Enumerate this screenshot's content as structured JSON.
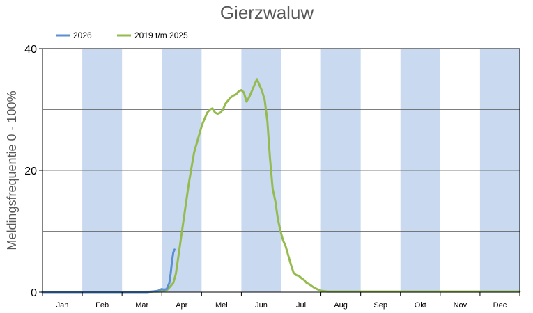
{
  "chart_data": {
    "type": "line",
    "title": "Gierzwaluw",
    "ylabel": "Meldingsfrequentie 0 - 100%",
    "xlabel": "",
    "ylim": [
      0,
      40
    ],
    "yticks": [
      0,
      20,
      40
    ],
    "ygrid_minor": [
      10,
      30
    ],
    "months": [
      "Jan",
      "Feb",
      "Mar",
      "Apr",
      "Mei",
      "Jun",
      "Jul",
      "Aug",
      "Sep",
      "Okt",
      "Nov",
      "Dec"
    ],
    "shaded_months": [
      "Feb",
      "Apr",
      "Jun",
      "Aug",
      "Okt",
      "Dec"
    ],
    "legend_position": "top-left",
    "colors": {
      "shade": "#c9d9ef",
      "series_2026": "#5b8fd1",
      "series_2019_2025": "#95bb4f"
    },
    "series": [
      {
        "name": "2026",
        "color": "#5b8fd1",
        "x": [
          0,
          10,
          30,
          60,
          80,
          88,
          91,
          93,
          95,
          97,
          98,
          99,
          100,
          101
        ],
        "y": [
          0,
          0,
          0,
          0,
          0,
          0.2,
          0.5,
          0.4,
          0.5,
          1.5,
          3,
          5,
          6.5,
          7
        ]
      },
      {
        "name": "2019 t/m 2025",
        "color": "#95bb4f",
        "x": [
          0,
          60,
          90,
          95,
          98,
          100,
          102,
          104,
          106,
          108,
          110,
          112,
          114,
          116,
          118,
          120,
          122,
          124,
          126,
          128,
          130,
          132,
          134,
          136,
          138,
          140,
          142,
          144,
          146,
          148,
          150,
          152,
          154,
          156,
          158,
          160,
          162,
          164,
          166,
          168,
          170,
          172,
          174,
          176,
          178,
          180,
          182,
          184,
          186,
          188,
          190,
          192,
          194,
          196,
          198,
          200,
          202,
          204,
          206,
          208,
          210,
          212,
          214,
          216,
          218,
          220,
          222,
          224,
          226,
          228,
          232,
          236,
          240,
          244,
          248,
          252,
          256,
          260,
          270,
          280,
          300,
          330,
          365
        ],
        "y": [
          0,
          0,
          0.1,
          0.3,
          1,
          1.5,
          3,
          6,
          9,
          12,
          15,
          18,
          20.5,
          23,
          24.5,
          26,
          27.5,
          28.5,
          29.5,
          30,
          30.2,
          29.5,
          29.3,
          29.5,
          30,
          31,
          31.5,
          32,
          32.3,
          32.5,
          33,
          33.2,
          32.8,
          31.3,
          32,
          33,
          34,
          35,
          34,
          33,
          31.5,
          28,
          22,
          17,
          15,
          12,
          10,
          8.5,
          7.5,
          6,
          4.5,
          3.2,
          2.8,
          2.7,
          2.3,
          2,
          1.5,
          1.3,
          1,
          0.7,
          0.5,
          0.3,
          0.2,
          0.15,
          0.1,
          0.1,
          0.1,
          0.1,
          0.1,
          0.1,
          0.1,
          0.1,
          0.1,
          0.1,
          0.1,
          0.1,
          0.1,
          0.1,
          0.1,
          0.1,
          0.1,
          0.1,
          0.1
        ]
      }
    ]
  }
}
